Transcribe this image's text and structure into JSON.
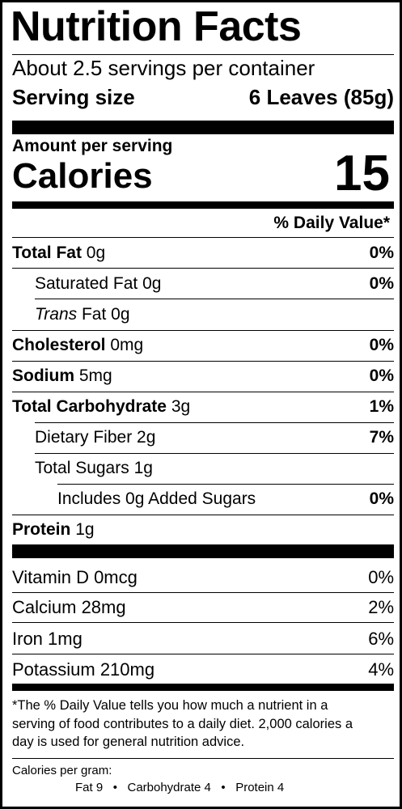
{
  "title": "Nutrition Facts",
  "servings_per_container": "About 2.5 servings per container",
  "serving_size_label": "Serving size",
  "serving_size_value": "6 Leaves (85g)",
  "amount_per_serving": "Amount per serving",
  "calories_label": "Calories",
  "calories_value": "15",
  "daily_value_header": "% Daily Value*",
  "nutrients": {
    "total_fat": {
      "name": "Total Fat",
      "amount": "0g",
      "dv": "0%"
    },
    "saturated_fat": {
      "name": "Saturated Fat 0g",
      "dv": "0%"
    },
    "trans_fat": {
      "name_italic": "Trans",
      "name_rest": "Fat 0g"
    },
    "cholesterol": {
      "name": "Cholesterol",
      "amount": "0mg",
      "dv": "0%"
    },
    "sodium": {
      "name": "Sodium",
      "amount": "5mg",
      "dv": "0%"
    },
    "total_carbohydrate": {
      "name": "Total Carbohydrate",
      "amount": "3g",
      "dv": "1%"
    },
    "dietary_fiber": {
      "name": "Dietary Fiber 2g",
      "dv": "7%"
    },
    "total_sugars": {
      "name": "Total Sugars 1g"
    },
    "added_sugars": {
      "name": "Includes 0g Added Sugars",
      "dv": "0%"
    },
    "protein": {
      "name": "Protein",
      "amount": "1g"
    }
  },
  "vitamins": [
    {
      "name": "Vitamin D 0mcg",
      "dv": "0%"
    },
    {
      "name": "Calcium 28mg",
      "dv": "2%"
    },
    {
      "name": "Iron 1mg",
      "dv": "6%"
    },
    {
      "name": "Potassium 210mg",
      "dv": "4%"
    }
  ],
  "footnote": {
    "line1": "*The % Daily Value tells you how much a nutrient in a",
    "line2": "serving of food contributes to a daily diet. 2,000 calories a",
    "line3": "day is used for general nutrition advice."
  },
  "calories_per_gram": {
    "label": "Calories per gram:",
    "fat": "Fat 9",
    "bullet": "•",
    "carbohydrate": "Carbohydrate 4",
    "protein": "Protein 4"
  }
}
